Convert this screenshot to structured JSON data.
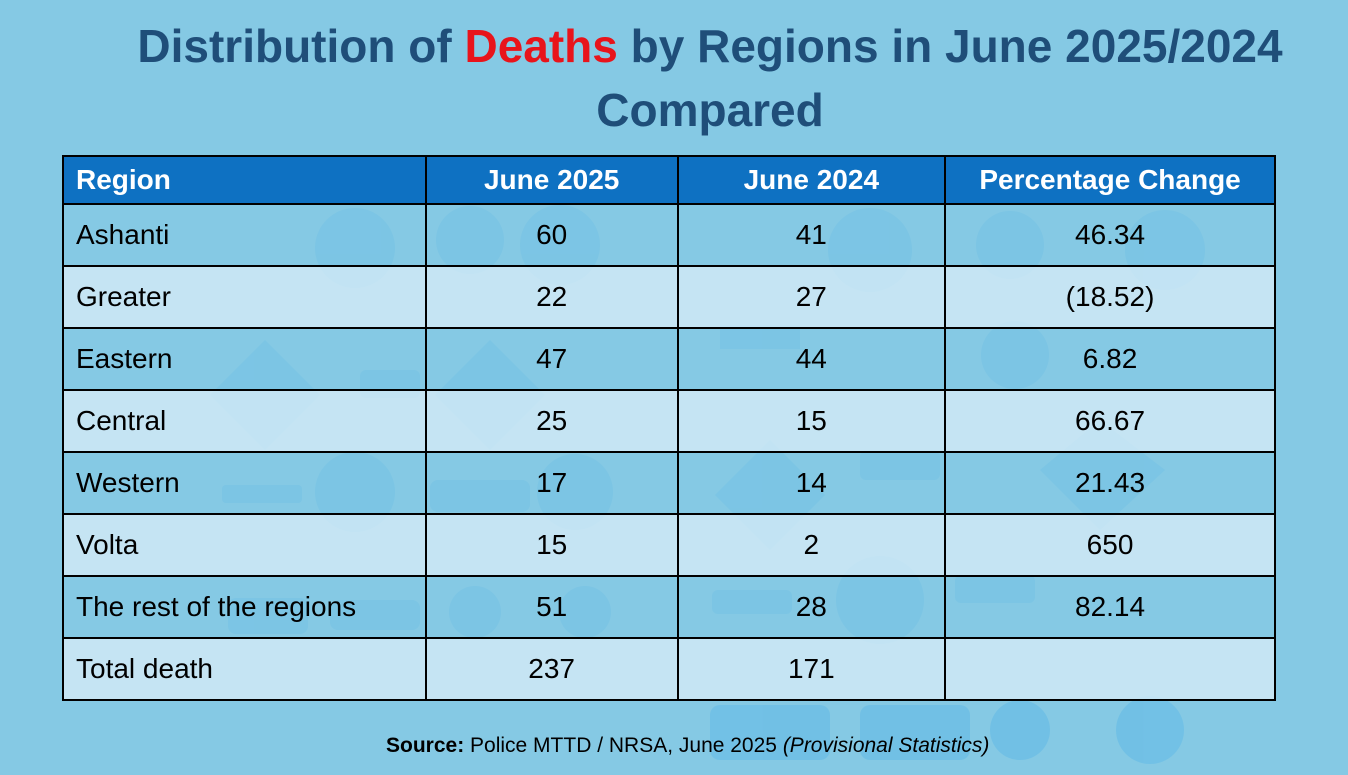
{
  "title": {
    "before": "Distribution of ",
    "highlight": "Deaths",
    "after": " by Regions in June 2025/2024",
    "line2": "Compared"
  },
  "table": {
    "headers": [
      "Region",
      "June 2025",
      "June 2024",
      "Percentage Change"
    ],
    "rows": [
      [
        "Ashanti",
        "60",
        "41",
        "46.34"
      ],
      [
        "Greater",
        "22",
        "27",
        "(18.52)"
      ],
      [
        "Eastern",
        "47",
        "44",
        "6.82"
      ],
      [
        "Central",
        "25",
        "15",
        "66.67"
      ],
      [
        "Western",
        "17",
        "14",
        "21.43"
      ],
      [
        "Volta",
        "15",
        "2",
        "650"
      ],
      [
        "The rest of the regions",
        "51",
        "28",
        "82.14"
      ],
      [
        "Total death",
        "237",
        "171",
        ""
      ]
    ]
  },
  "source": {
    "label": "Source:",
    "text": " Police MTTD / NRSA, June 2025 ",
    "note": "(Provisional Statistics)"
  },
  "colors": {
    "background": "#85c9e4",
    "title": "#1f4e79",
    "highlight": "#e8141b",
    "header": "#0e71c2"
  }
}
